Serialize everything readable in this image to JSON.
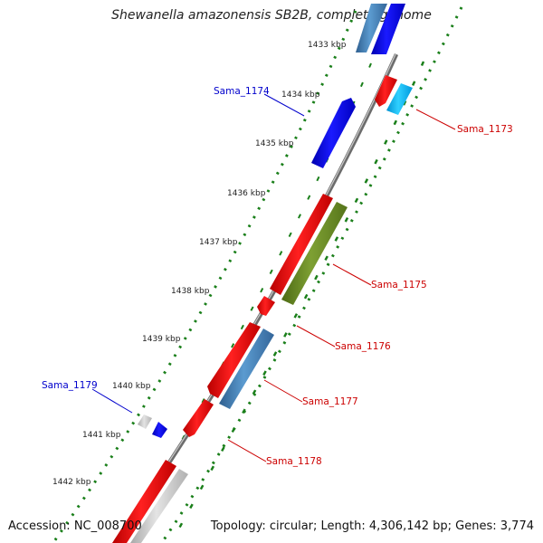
{
  "title": "Shewanella amazonensis SB2B, complete genome",
  "accession": "Accession: NC_008700",
  "topology": "Topology: circular; Length: 4,306,142 bp; Genes: 3,774",
  "ticks": [
    "1433 kbp",
    "1434 kbp",
    "1435 kbp",
    "1436 kbp",
    "1437 kbp",
    "1438 kbp",
    "1439 kbp",
    "1440 kbp",
    "1441 kbp",
    "1442 kbp"
  ],
  "gene_labels": {
    "sama_1174": "Sama_1174",
    "sama_1173": "Sama_1173",
    "sama_1175": "Sama_1175",
    "sama_1176": "Sama_1176",
    "sama_1177": "Sama_1177",
    "sama_1178": "Sama_1178",
    "sama_1179": "Sama_1179"
  },
  "colors": {
    "backbone": "#808080",
    "tick_marks": "#1a7f1a",
    "reverse_label": "#0000cc",
    "forward_label": "#cc0000",
    "gene_red": "#ee1111",
    "gene_blue": "#1010ee",
    "gene_steelblue": "#4682b4",
    "gene_cyan": "#00bfff",
    "gene_olive": "#6b8e23",
    "gene_gray": "#c8c8c8"
  }
}
